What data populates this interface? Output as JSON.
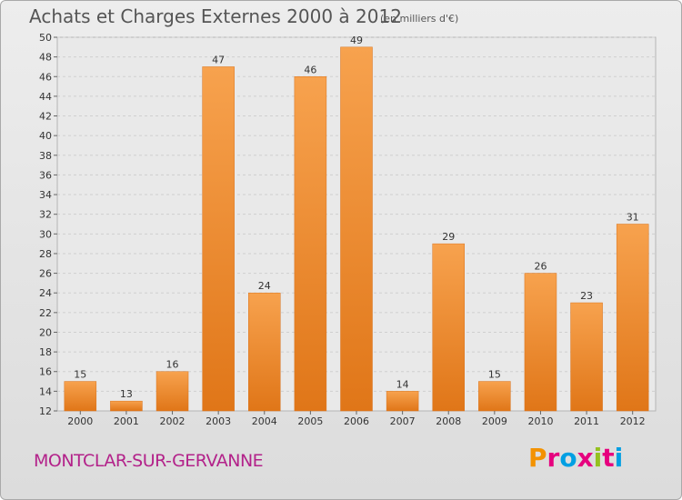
{
  "header": {
    "title": "Achats et Charges Externes 2000 à 2012",
    "subtitle": "(en milliers d'€)"
  },
  "footer": {
    "commune": "MONTCLAR-SUR-GERVANNE",
    "brand": "Proxiti",
    "brand_colors": [
      "#f39200",
      "#e6007e",
      "#009fe3",
      "#e6007e",
      "#95c11f",
      "#e6007e",
      "#009fe3"
    ]
  },
  "colors": {
    "bar_top": "#f7a24e",
    "bar_bottom": "#e07618",
    "commune": "#b3228a"
  },
  "chart_data": {
    "type": "bar",
    "categories": [
      "2000",
      "2001",
      "2002",
      "2003",
      "2004",
      "2005",
      "2006",
      "2007",
      "2008",
      "2009",
      "2010",
      "2011",
      "2012"
    ],
    "values": [
      15,
      13,
      16,
      47,
      24,
      46,
      49,
      14,
      29,
      15,
      26,
      23,
      31
    ],
    "ylim": [
      12,
      50
    ],
    "yticks": [
      12,
      14,
      16,
      18,
      20,
      22,
      24,
      26,
      28,
      30,
      32,
      34,
      36,
      38,
      40,
      42,
      44,
      46,
      48,
      50
    ],
    "grid": true,
    "xlabel": "",
    "ylabel": ""
  }
}
